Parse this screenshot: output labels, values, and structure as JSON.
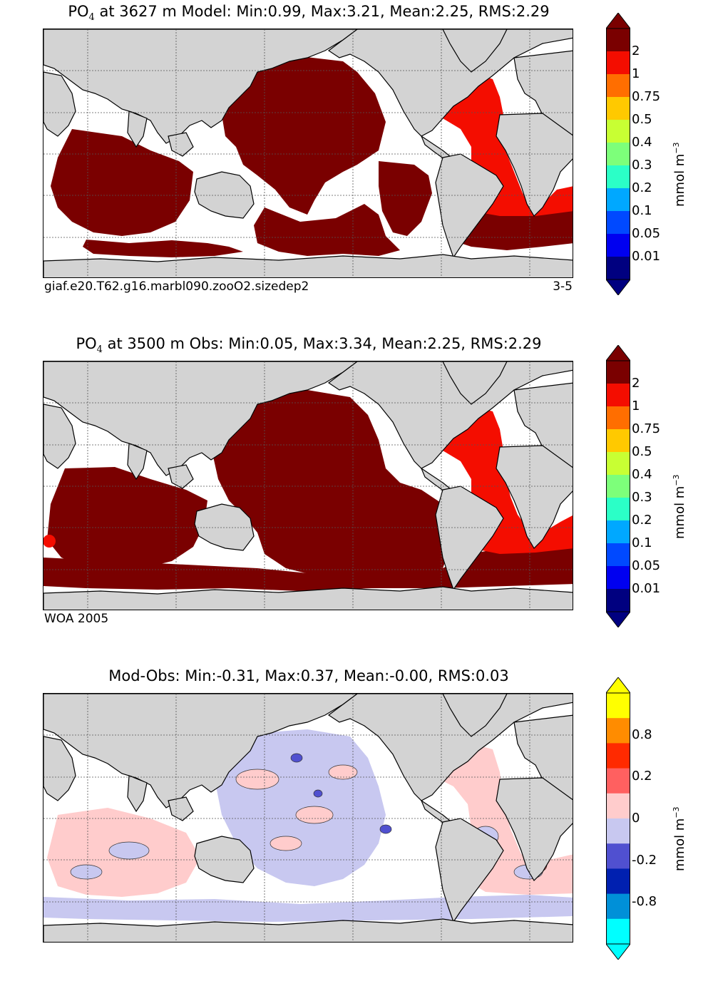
{
  "panels": [
    {
      "title_prefix": "PO",
      "title_sub": "4",
      "title_rest": " at 3627 m Model: Min:0.99, Max:3.21, Mean:2.25, RMS:2.29",
      "footer_left": "giaf.e20.T62.g16.marbl090.zooO2.sizedep2",
      "footer_right": "3-5",
      "colorbar": {
        "labels": [
          "2",
          "1",
          "0.75",
          "0.5",
          "0.4",
          "0.3",
          "0.2",
          "0.1",
          "0.05",
          "0.01"
        ],
        "colors": [
          "#7a0000",
          "#f40d00",
          "#ff6e00",
          "#ffc900",
          "#c8ff33",
          "#7dff7a",
          "#2bffc7",
          "#00a8ff",
          "#0049ff",
          "#0000f0",
          "#000080"
        ],
        "unit": "mmol m",
        "unit_exp": "−3"
      }
    },
    {
      "title_prefix": "PO",
      "title_sub": "4",
      "title_rest": " at 3500 m Obs: Min:0.05, Max:3.34, Mean:2.25, RMS:2.29",
      "footer_left": "WOA 2005",
      "footer_right": "",
      "colorbar": {
        "labels": [
          "2",
          "1",
          "0.75",
          "0.5",
          "0.4",
          "0.3",
          "0.2",
          "0.1",
          "0.05",
          "0.01"
        ],
        "colors": [
          "#7a0000",
          "#f40d00",
          "#ff6e00",
          "#ffc900",
          "#c8ff33",
          "#7dff7a",
          "#2bffc7",
          "#00a8ff",
          "#0049ff",
          "#0000f0",
          "#000080"
        ],
        "unit": "mmol m",
        "unit_exp": "−3"
      }
    },
    {
      "title_prefix": "",
      "title_sub": "",
      "title_rest": "Mod-Obs: Min:-0.31, Max:0.37, Mean:-0.00, RMS:0.03",
      "footer_left": "",
      "footer_right": "",
      "colorbar": {
        "labels": [
          "0.8",
          "0.2",
          "0",
          "-0.2",
          "-0.8"
        ],
        "colors": [
          "#ffff00",
          "#ff8c00",
          "#ff2a00",
          "#ff6060",
          "#ffcccc",
          "#c8c8f0",
          "#5050d0",
          "#0020b0",
          "#0090d8",
          "#00ffff"
        ],
        "unit": "mmol m",
        "unit_exp": "−3"
      }
    }
  ],
  "chart_data": [
    {
      "type": "heatmap",
      "title": "PO4 at 3627 m Model: Min:0.99, Max:3.21, Mean:2.25, RMS:2.29",
      "variable": "PO4",
      "depth_m": 3627,
      "stats": {
        "min": 0.99,
        "max": 3.21,
        "mean": 2.25,
        "rms": 2.29
      },
      "colorbar_levels": [
        0.01,
        0.05,
        0.1,
        0.2,
        0.3,
        0.4,
        0.5,
        0.75,
        1,
        2
      ],
      "units": "mmol m^-3"
    },
    {
      "type": "heatmap",
      "title": "PO4 at 3500 m Obs: Min:0.05, Max:3.34, Mean:2.25, RMS:2.29",
      "variable": "PO4",
      "depth_m": 3500,
      "stats": {
        "min": 0.05,
        "max": 3.34,
        "mean": 2.25,
        "rms": 2.29
      },
      "colorbar_levels": [
        0.01,
        0.05,
        0.1,
        0.2,
        0.3,
        0.4,
        0.5,
        0.75,
        1,
        2
      ],
      "units": "mmol m^-3"
    },
    {
      "type": "heatmap",
      "title": "Mod-Obs: Min:-0.31, Max:0.37, Mean:-0.00, RMS:0.03",
      "variable": "PO4 difference",
      "stats": {
        "min": -0.31,
        "max": 0.37,
        "mean": -0.0,
        "rms": 0.03
      },
      "colorbar_levels": [
        -0.8,
        -0.2,
        0,
        0.2,
        0.8
      ],
      "units": "mmol m^-3"
    }
  ]
}
